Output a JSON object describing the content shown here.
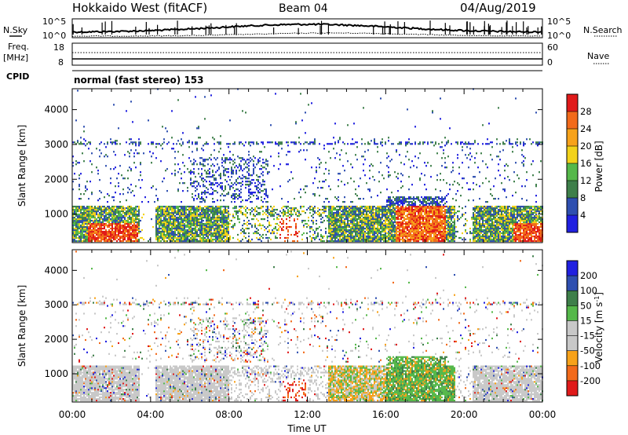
{
  "header": {
    "station": "Hokkaido West (fitACF)",
    "beam": "Beam 04",
    "date": "04/Aug/2019"
  },
  "left_labels": {
    "nsky": "N.Sky",
    "freq_line1": "Freq.",
    "freq_line2": "[MHz]",
    "cpid": "CPID"
  },
  "right_labels": {
    "nsearch": "N.Search",
    "nave": "Nave"
  },
  "noise_axis": {
    "top": "10^5",
    "bottom": "10^0"
  },
  "freq_axis": {
    "top": "18",
    "bottom": "8"
  },
  "nave_axis": {
    "top": "60",
    "bottom": "0"
  },
  "cpid_text": "normal (fast stereo) 153",
  "colors": {
    "power": [
      "#2020e0",
      "#2e4fb0",
      "#3e7f4a",
      "#55b84a",
      "#f2d21a",
      "#f7a21a",
      "#f26a1a",
      "#e01a1a"
    ],
    "velocity": [
      "#e01a1a",
      "#f26a1a",
      "#f7a21a",
      "#c8c8c8",
      "#c8c8c8",
      "#55b84a",
      "#3e7f4a",
      "#2e4fb0",
      "#2020e0"
    ]
  },
  "chart_data": [
    {
      "type": "heatmap",
      "name": "power",
      "ylabel": "Slant Range [km]",
      "ylim": [
        180,
        4600
      ],
      "yticks": [
        "1000",
        "2000",
        "3000",
        "4000"
      ],
      "colorbar_label": "Power [dB]",
      "colorbar_ticks": [
        "4",
        "8",
        "12",
        "16",
        "20",
        "24",
        "28"
      ],
      "xlim": [
        "00:00",
        "24:00"
      ],
      "xticks": [
        "00:00",
        "04:00",
        "08:00",
        "12:00",
        "16:00",
        "20:00",
        "00:00"
      ],
      "grid": false
    },
    {
      "type": "heatmap",
      "name": "velocity",
      "ylabel": "Slant Range [km]",
      "ylim": [
        180,
        4600
      ],
      "yticks": [
        "1000",
        "2000",
        "3000",
        "4000"
      ],
      "colorbar_label": "Velocity [m s^-1]",
      "colorbar_ticks": [
        "200",
        "100",
        "50",
        "15",
        "-15",
        "-50",
        "-100",
        "-200"
      ],
      "xlabel": "Time UT",
      "xlim": [
        "00:00",
        "24:00"
      ],
      "xticks": [
        "00:00",
        "04:00",
        "08:00",
        "12:00",
        "16:00",
        "20:00",
        "00:00"
      ],
      "grid": false
    }
  ]
}
